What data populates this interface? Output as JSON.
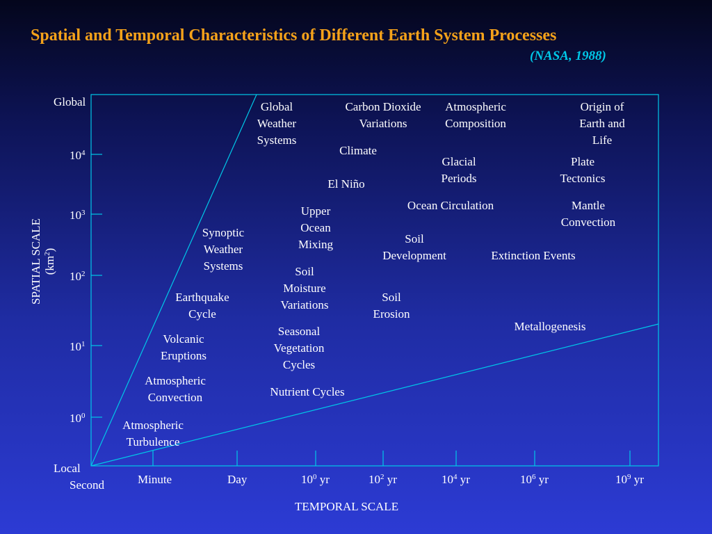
{
  "header": {
    "title": "Spatial and Temporal Characteristics of Different Earth System Processes",
    "citation": "(NASA, 1988)"
  },
  "colors": {
    "title": "#f5a21a",
    "citation": "#00c8e8",
    "axis_lines": "#00c8e8",
    "text": "#ffffff"
  },
  "axes": {
    "y_title": "SPATIAL SCALE",
    "y_unit_base": "(km",
    "y_unit_exp": "2",
    "y_unit_close": ")",
    "x_title": "TEMPORAL SCALE",
    "y_ticks": [
      {
        "base": "Global",
        "exp": ""
      },
      {
        "base": "10",
        "exp": "4"
      },
      {
        "base": "10",
        "exp": "3"
      },
      {
        "base": "10",
        "exp": "2"
      },
      {
        "base": "10",
        "exp": "1"
      },
      {
        "base": "10",
        "exp": "0"
      },
      {
        "base": "Local",
        "exp": ""
      }
    ],
    "x_ticks": [
      {
        "base": "Second",
        "exp": "",
        "suffix": ""
      },
      {
        "base": "Minute",
        "exp": "",
        "suffix": ""
      },
      {
        "base": "Day",
        "exp": "",
        "suffix": ""
      },
      {
        "base": "10",
        "exp": "0",
        "suffix": " yr"
      },
      {
        "base": "10",
        "exp": "2",
        "suffix": " yr"
      },
      {
        "base": "10",
        "exp": "4",
        "suffix": " yr"
      },
      {
        "base": "10",
        "exp": "6",
        "suffix": " yr"
      },
      {
        "base": "10",
        "exp": "9",
        "suffix": " yr"
      }
    ]
  },
  "processes": [
    "Global\nWeather\nSystems",
    "Carbon Dioxide\nVariations",
    "Atmospheric\nComposition",
    "Origin of\nEarth and\nLife",
    "Climate",
    "Glacial\nPeriods",
    "Plate\nTectonics",
    "El Niño",
    "Ocean Circulation",
    "Mantle\nConvection",
    "Upper\nOcean\nMixing",
    "Synoptic\nWeather\nSystems",
    "Soil\nDevelopment",
    "Extinction Events",
    "Soil\nMoisture\nVariations",
    "Earthquake\nCycle",
    "Soil\nErosion",
    "Metallogenesis",
    "Seasonal\nVegetation\nCycles",
    "Volcanic\nEruptions",
    "Atmospheric\nConvection",
    "Nutrient Cycles",
    "Atmospheric\nTurbulence"
  ]
}
